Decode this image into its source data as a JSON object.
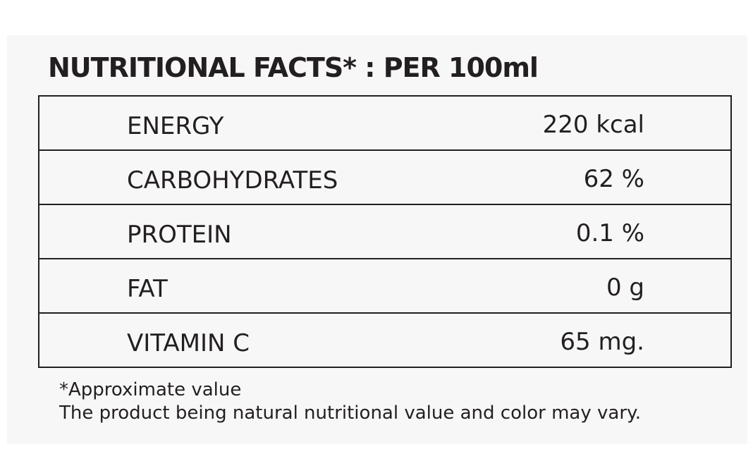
{
  "header": {
    "title": "NUTRITIONAL FACTS* : PER 100ml"
  },
  "table": {
    "rows": [
      [
        "ENERGY",
        "220 kcal"
      ],
      [
        "CARBOHYDRATES",
        "62 %"
      ],
      [
        "PROTEIN",
        "0.1 %"
      ],
      [
        "FAT",
        "0 g"
      ],
      [
        "VITAMIN C",
        "65 mg."
      ]
    ]
  },
  "footnotes": [
    "*Approximate value",
    "The product being natural nutritional value and color may vary."
  ]
}
